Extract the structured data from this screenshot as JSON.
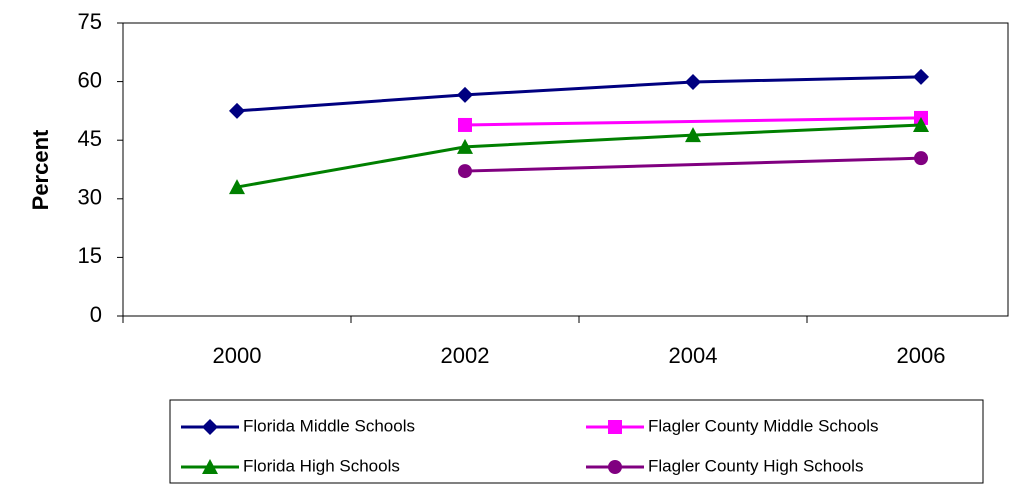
{
  "chart_data": {
    "type": "line",
    "ylabel": "Percent",
    "categories": [
      "2000",
      "2002",
      "2004",
      "2006"
    ],
    "series": [
      {
        "name": "Florida Middle Schools",
        "color": "#000080",
        "marker": "diamond",
        "values": [
          52.5,
          56.6,
          59.9,
          61.2
        ]
      },
      {
        "name": "Flagler County Middle Schools",
        "color": "#ff00ff",
        "marker": "square",
        "values": [
          null,
          48.9,
          null,
          50.7
        ]
      },
      {
        "name": "Florida High Schools",
        "color": "#008000",
        "marker": "triangle",
        "values": [
          33.0,
          43.3,
          46.3,
          48.9
        ]
      },
      {
        "name": "Flagler County High Schools",
        "color": "#800080",
        "marker": "circle",
        "values": [
          null,
          37.1,
          null,
          40.4
        ]
      }
    ],
    "span_gaps": true,
    "ylim": [
      0,
      75
    ],
    "yticks": [
      0,
      15,
      30,
      45,
      60,
      75
    ],
    "legend": "bottom"
  }
}
